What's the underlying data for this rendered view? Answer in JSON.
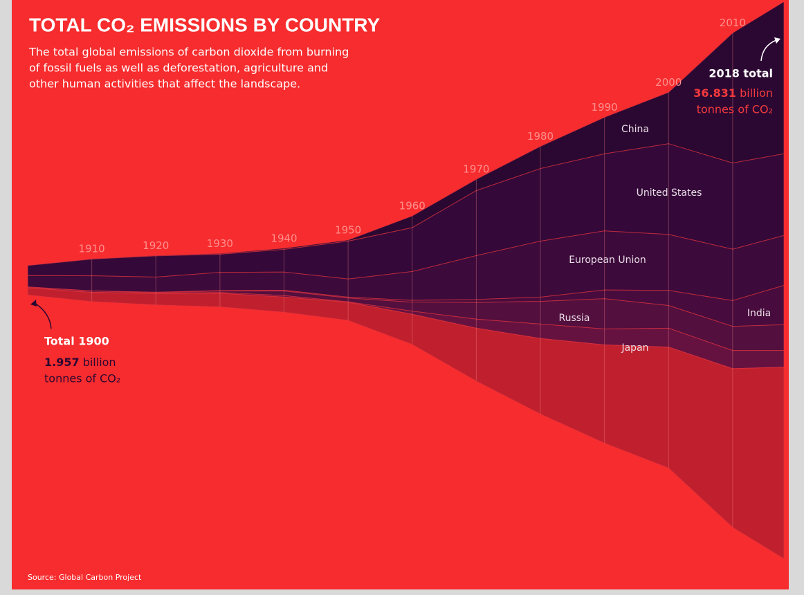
{
  "chart_data": {
    "type": "stream",
    "title": "TOTAL CO₂ EMISSIONS BY COUNTRY",
    "subtitle": [
      "The total global emissions of carbon dioxide from burning",
      "of fossil fuels as well as deforestation, agriculture and",
      "other human activities that affect the landscape."
    ],
    "source": "Source: Global Carbon Project",
    "x": [
      1900,
      1910,
      1920,
      1930,
      1940,
      1950,
      1960,
      1970,
      1980,
      1990,
      2000,
      2010,
      2018
    ],
    "xlim": [
      1900,
      2018
    ],
    "xticks": [
      1910,
      1920,
      1930,
      1940,
      1950,
      1960,
      1970,
      1980,
      1990,
      2000,
      2010
    ],
    "grid": true,
    "series": [
      {
        "name": "China",
        "color": "#2b0832",
        "values": [
          0.01,
          0.02,
          0.03,
          0.05,
          0.08,
          0.08,
          0.78,
          0.75,
          1.47,
          2.42,
          3.4,
          8.6,
          10.06
        ]
      },
      {
        "name": "United States",
        "color": "#340939",
        "values": [
          0.66,
          1.1,
          1.4,
          1.2,
          1.5,
          2.5,
          2.9,
          4.3,
          4.8,
          5.1,
          6.0,
          5.7,
          5.4
        ]
      },
      {
        "name": "European Union",
        "color": "#3c0a3b",
        "values": [
          0.75,
          1.0,
          1.0,
          1.2,
          1.2,
          1.2,
          1.9,
          2.9,
          3.7,
          3.9,
          3.7,
          3.4,
          3.3
        ]
      },
      {
        "name": "India",
        "color": "#470c3d",
        "values": [
          0.01,
          0.02,
          0.03,
          0.03,
          0.05,
          0.06,
          0.12,
          0.2,
          0.28,
          0.58,
          1.0,
          1.7,
          2.6
        ]
      },
      {
        "name": "Russia",
        "color": "#530f3e",
        "values": [
          0.04,
          0.07,
          0.03,
          0.1,
          0.3,
          0.25,
          0.6,
          1.1,
          1.5,
          2.0,
          1.5,
          1.6,
          1.7
        ]
      },
      {
        "name": "Japan",
        "color": "#661240",
        "values": [
          0.01,
          0.02,
          0.03,
          0.05,
          0.1,
          0.03,
          0.2,
          0.6,
          0.95,
          1.05,
          1.25,
          1.2,
          1.1
        ]
      },
      {
        "color": "#c0202e",
        "values": [
          0.477,
          0.6,
          0.75,
          0.9,
          1.0,
          1.2,
          2.0,
          3.5,
          5.0,
          6.5,
          8.0,
          10.5,
          12.671
        ]
      }
    ],
    "annotations": [
      {
        "label": "Total 1900",
        "value": 1.957,
        "unit": "billion",
        "unit_line": "tonnes of CO₂"
      },
      {
        "label": "2018 total",
        "value": 36.831,
        "unit": "billion",
        "unit_line": "tonnes of CO₂"
      }
    ]
  }
}
